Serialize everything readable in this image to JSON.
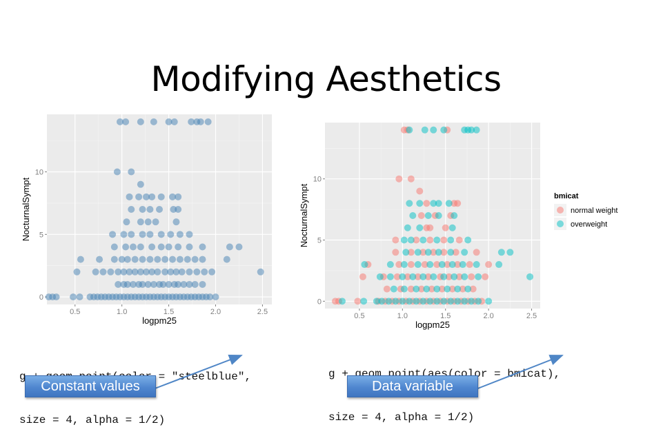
{
  "slide": {
    "title": "Modifying Aesthetics",
    "left_code_line1": "g + geom_point(color = \"steelblue\",",
    "left_code_line2": "size = 4, alpha = 1/2)",
    "right_code_line1": "g + geom_point(aes(color = bmicat),",
    "right_code_line2": "size = 4, alpha = 1/2)",
    "left_callout": "Constant values",
    "right_callout": "Data variable"
  },
  "colors": {
    "panel_bg": "#ebebeb",
    "grid": "#ffffff",
    "steelblue": "#4682b4",
    "normal_weight": "#f8766d",
    "overweight": "#00bfc4",
    "callout": "#4f86cf"
  },
  "chart_data": [
    {
      "type": "scatter",
      "xlabel": "logpm25",
      "ylabel": "NocturnalSympt",
      "xlim": [
        0.2,
        2.6
      ],
      "ylim": [
        -0.6,
        14.6
      ],
      "x_ticks": [
        0.5,
        1.0,
        1.5,
        2.0,
        2.5
      ],
      "x_tick_labels": [
        "0.5",
        "1.0",
        "1.5",
        "2.0",
        "2.5"
      ],
      "y_ticks": [
        0,
        5,
        10
      ],
      "y_tick_labels": [
        "0",
        "5",
        "10"
      ],
      "grid": true,
      "color": "steelblue",
      "points": [
        [
          0.22,
          0
        ],
        [
          0.26,
          0
        ],
        [
          0.3,
          0
        ],
        [
          0.48,
          0
        ],
        [
          0.55,
          0
        ],
        [
          0.66,
          0
        ],
        [
          0.7,
          0
        ],
        [
          0.74,
          0
        ],
        [
          0.78,
          0
        ],
        [
          0.82,
          0
        ],
        [
          0.86,
          0
        ],
        [
          0.9,
          0
        ],
        [
          0.94,
          0
        ],
        [
          0.98,
          0
        ],
        [
          1.02,
          0
        ],
        [
          1.06,
          0
        ],
        [
          1.1,
          0
        ],
        [
          1.14,
          0
        ],
        [
          1.18,
          0
        ],
        [
          1.22,
          0
        ],
        [
          1.26,
          0
        ],
        [
          1.3,
          0
        ],
        [
          1.34,
          0
        ],
        [
          1.38,
          0
        ],
        [
          1.42,
          0
        ],
        [
          1.46,
          0
        ],
        [
          1.5,
          0
        ],
        [
          1.54,
          0
        ],
        [
          1.58,
          0
        ],
        [
          1.62,
          0
        ],
        [
          1.66,
          0
        ],
        [
          1.7,
          0
        ],
        [
          1.74,
          0
        ],
        [
          1.78,
          0
        ],
        [
          1.82,
          0
        ],
        [
          1.86,
          0
        ],
        [
          1.9,
          0
        ],
        [
          1.94,
          0
        ],
        [
          2.0,
          0
        ],
        [
          0.96,
          1
        ],
        [
          1.02,
          1
        ],
        [
          1.06,
          1
        ],
        [
          1.12,
          1
        ],
        [
          1.18,
          1
        ],
        [
          1.22,
          1
        ],
        [
          1.28,
          1
        ],
        [
          1.34,
          1
        ],
        [
          1.4,
          1
        ],
        [
          1.44,
          1
        ],
        [
          1.5,
          1
        ],
        [
          1.56,
          1
        ],
        [
          1.6,
          1
        ],
        [
          1.66,
          1
        ],
        [
          1.72,
          1
        ],
        [
          1.78,
          1
        ],
        [
          1.86,
          1
        ],
        [
          0.52,
          2
        ],
        [
          0.72,
          2
        ],
        [
          0.8,
          2
        ],
        [
          0.88,
          2
        ],
        [
          0.96,
          2
        ],
        [
          1.02,
          2
        ],
        [
          1.08,
          2
        ],
        [
          1.14,
          2
        ],
        [
          1.2,
          2
        ],
        [
          1.26,
          2
        ],
        [
          1.32,
          2
        ],
        [
          1.38,
          2
        ],
        [
          1.46,
          2
        ],
        [
          1.52,
          2
        ],
        [
          1.58,
          2
        ],
        [
          1.64,
          2
        ],
        [
          1.72,
          2
        ],
        [
          1.8,
          2
        ],
        [
          1.88,
          2
        ],
        [
          1.96,
          2
        ],
        [
          0.56,
          3
        ],
        [
          0.76,
          3
        ],
        [
          0.92,
          3
        ],
        [
          1.0,
          3
        ],
        [
          1.06,
          3
        ],
        [
          1.14,
          3
        ],
        [
          1.22,
          3
        ],
        [
          1.3,
          3
        ],
        [
          1.38,
          3
        ],
        [
          1.46,
          3
        ],
        [
          1.54,
          3
        ],
        [
          1.62,
          3
        ],
        [
          1.7,
          3
        ],
        [
          1.78,
          3
        ],
        [
          1.86,
          3
        ],
        [
          2.12,
          3
        ],
        [
          0.92,
          4
        ],
        [
          1.04,
          4
        ],
        [
          1.12,
          4
        ],
        [
          1.2,
          4
        ],
        [
          1.32,
          4
        ],
        [
          1.42,
          4
        ],
        [
          1.5,
          4
        ],
        [
          1.6,
          4
        ],
        [
          1.72,
          4
        ],
        [
          1.86,
          4
        ],
        [
          2.15,
          4
        ],
        [
          2.25,
          4
        ],
        [
          0.9,
          5
        ],
        [
          1.02,
          5
        ],
        [
          1.1,
          5
        ],
        [
          1.22,
          5
        ],
        [
          1.3,
          5
        ],
        [
          1.42,
          5
        ],
        [
          1.52,
          5
        ],
        [
          1.62,
          5
        ],
        [
          1.72,
          5
        ],
        [
          1.05,
          6
        ],
        [
          1.2,
          6
        ],
        [
          1.28,
          6
        ],
        [
          1.36,
          6
        ],
        [
          1.58,
          6
        ],
        [
          1.1,
          7
        ],
        [
          1.22,
          7
        ],
        [
          1.3,
          7
        ],
        [
          1.4,
          7
        ],
        [
          1.55,
          7
        ],
        [
          1.6,
          7
        ],
        [
          1.08,
          8
        ],
        [
          1.18,
          8
        ],
        [
          1.26,
          8
        ],
        [
          1.32,
          8
        ],
        [
          1.42,
          8
        ],
        [
          1.54,
          8
        ],
        [
          1.6,
          8
        ],
        [
          1.2,
          9
        ],
        [
          0.95,
          10
        ],
        [
          1.1,
          10
        ],
        [
          0.98,
          14
        ],
        [
          1.04,
          14
        ],
        [
          1.2,
          14
        ],
        [
          1.34,
          14
        ],
        [
          1.5,
          14
        ],
        [
          1.56,
          14
        ],
        [
          1.74,
          14
        ],
        [
          1.8,
          14
        ],
        [
          1.84,
          14
        ],
        [
          1.92,
          14
        ],
        [
          2.48,
          2
        ]
      ]
    },
    {
      "type": "scatter",
      "xlabel": "logpm25",
      "ylabel": "NocturnalSympt",
      "xlim": [
        0.1,
        2.6
      ],
      "ylim": [
        -0.6,
        14.6
      ],
      "x_ticks": [
        0.5,
        1.0,
        1.5,
        2.0,
        2.5
      ],
      "x_tick_labels": [
        "0.5",
        "1.0",
        "1.5",
        "2.0",
        "2.5"
      ],
      "y_ticks": [
        0,
        5,
        10
      ],
      "y_tick_labels": [
        "0",
        "5",
        "10"
      ],
      "grid": true,
      "legend_title": "bmicat",
      "legend_position": "right",
      "series": [
        {
          "name": "normal weight",
          "color": "#f8766d",
          "points": [
            [
              0.22,
              0
            ],
            [
              0.26,
              0
            ],
            [
              0.48,
              0
            ],
            [
              0.72,
              0
            ],
            [
              0.8,
              0
            ],
            [
              0.88,
              0
            ],
            [
              0.96,
              0
            ],
            [
              1.04,
              0
            ],
            [
              1.12,
              0
            ],
            [
              1.2,
              0
            ],
            [
              1.28,
              0
            ],
            [
              1.36,
              0
            ],
            [
              1.44,
              0
            ],
            [
              1.52,
              0
            ],
            [
              1.6,
              0
            ],
            [
              1.68,
              0
            ],
            [
              1.76,
              0
            ],
            [
              1.84,
              0
            ],
            [
              1.92,
              0
            ],
            [
              0.82,
              1
            ],
            [
              0.98,
              1
            ],
            [
              1.1,
              1
            ],
            [
              1.22,
              1
            ],
            [
              1.34,
              1
            ],
            [
              1.46,
              1
            ],
            [
              1.58,
              1
            ],
            [
              1.7,
              1
            ],
            [
              1.82,
              1
            ],
            [
              0.54,
              2
            ],
            [
              0.78,
              2
            ],
            [
              0.94,
              2
            ],
            [
              1.06,
              2
            ],
            [
              1.18,
              2
            ],
            [
              1.3,
              2
            ],
            [
              1.44,
              2
            ],
            [
              1.54,
              2
            ],
            [
              1.66,
              2
            ],
            [
              1.8,
              2
            ],
            [
              1.96,
              2
            ],
            [
              0.6,
              3
            ],
            [
              0.96,
              3
            ],
            [
              1.1,
              3
            ],
            [
              1.26,
              3
            ],
            [
              1.4,
              3
            ],
            [
              1.52,
              3
            ],
            [
              1.64,
              3
            ],
            [
              1.78,
              3
            ],
            [
              2.0,
              3
            ],
            [
              0.92,
              4
            ],
            [
              1.1,
              4
            ],
            [
              1.24,
              4
            ],
            [
              1.36,
              4
            ],
            [
              1.48,
              4
            ],
            [
              1.62,
              4
            ],
            [
              1.86,
              4
            ],
            [
              0.92,
              5
            ],
            [
              1.16,
              5
            ],
            [
              1.32,
              5
            ],
            [
              1.48,
              5
            ],
            [
              1.66,
              5
            ],
            [
              1.28,
              6
            ],
            [
              1.32,
              6
            ],
            [
              1.5,
              6
            ],
            [
              1.22,
              7
            ],
            [
              1.38,
              7
            ],
            [
              1.56,
              7
            ],
            [
              1.28,
              8
            ],
            [
              1.6,
              8
            ],
            [
              1.64,
              8
            ],
            [
              1.2,
              9
            ],
            [
              0.96,
              10
            ],
            [
              1.1,
              10
            ],
            [
              1.02,
              14
            ],
            [
              1.06,
              14
            ],
            [
              1.52,
              14
            ]
          ]
        },
        {
          "name": "overweight",
          "color": "#00bfc4",
          "points": [
            [
              0.3,
              0
            ],
            [
              0.55,
              0
            ],
            [
              0.7,
              0
            ],
            [
              0.76,
              0
            ],
            [
              0.84,
              0
            ],
            [
              0.92,
              0
            ],
            [
              1.0,
              0
            ],
            [
              1.08,
              0
            ],
            [
              1.16,
              0
            ],
            [
              1.24,
              0
            ],
            [
              1.32,
              0
            ],
            [
              1.4,
              0
            ],
            [
              1.48,
              0
            ],
            [
              1.56,
              0
            ],
            [
              1.64,
              0
            ],
            [
              1.72,
              0
            ],
            [
              1.8,
              0
            ],
            [
              1.88,
              0
            ],
            [
              2.0,
              0
            ],
            [
              0.9,
              1
            ],
            [
              1.02,
              1
            ],
            [
              1.16,
              1
            ],
            [
              1.28,
              1
            ],
            [
              1.4,
              1
            ],
            [
              1.52,
              1
            ],
            [
              1.64,
              1
            ],
            [
              1.76,
              1
            ],
            [
              0.74,
              2
            ],
            [
              0.86,
              2
            ],
            [
              1.0,
              2
            ],
            [
              1.12,
              2
            ],
            [
              1.24,
              2
            ],
            [
              1.36,
              2
            ],
            [
              1.48,
              2
            ],
            [
              1.6,
              2
            ],
            [
              1.72,
              2
            ],
            [
              1.88,
              2
            ],
            [
              2.48,
              2
            ],
            [
              0.56,
              3
            ],
            [
              0.86,
              3
            ],
            [
              1.02,
              3
            ],
            [
              1.18,
              3
            ],
            [
              1.32,
              3
            ],
            [
              1.46,
              3
            ],
            [
              1.58,
              3
            ],
            [
              1.7,
              3
            ],
            [
              1.86,
              3
            ],
            [
              2.12,
              3
            ],
            [
              1.04,
              4
            ],
            [
              1.18,
              4
            ],
            [
              1.3,
              4
            ],
            [
              1.42,
              4
            ],
            [
              1.56,
              4
            ],
            [
              1.72,
              4
            ],
            [
              2.15,
              4
            ],
            [
              2.25,
              4
            ],
            [
              1.02,
              5
            ],
            [
              1.1,
              5
            ],
            [
              1.24,
              5
            ],
            [
              1.4,
              5
            ],
            [
              1.56,
              5
            ],
            [
              1.76,
              5
            ],
            [
              1.06,
              6
            ],
            [
              1.2,
              6
            ],
            [
              1.58,
              6
            ],
            [
              1.12,
              7
            ],
            [
              1.3,
              7
            ],
            [
              1.42,
              7
            ],
            [
              1.6,
              7
            ],
            [
              1.08,
              8
            ],
            [
              1.2,
              8
            ],
            [
              1.36,
              8
            ],
            [
              1.42,
              8
            ],
            [
              1.54,
              8
            ],
            [
              1.08,
              14
            ],
            [
              1.26,
              14
            ],
            [
              1.36,
              14
            ],
            [
              1.48,
              14
            ],
            [
              1.72,
              14
            ],
            [
              1.76,
              14
            ],
            [
              1.8,
              14
            ],
            [
              1.86,
              14
            ]
          ]
        }
      ]
    }
  ]
}
